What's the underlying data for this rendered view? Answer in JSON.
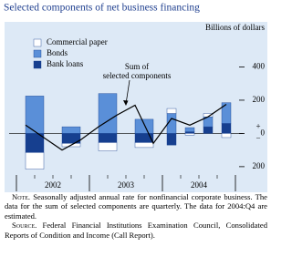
{
  "chart_data": {
    "type": "stacked_bar_line",
    "title": "Selected components of net business financing",
    "units": "Billions of dollars",
    "annotation": "Sum of selected components",
    "sign_labels": {
      "positive": "+",
      "negative": "−"
    },
    "year_labels": [
      "2002",
      "2003",
      "2004"
    ],
    "xlim": [
      2001.9,
      2005.1
    ],
    "xticks": [
      2002,
      2003,
      2004,
      2005
    ],
    "ylim": [
      -250,
      600
    ],
    "yticks": [
      400,
      200,
      0,
      {
        "value": -200,
        "label": "200"
      }
    ],
    "bar_x": [
      2002.25,
      2002.75,
      2003.25,
      2003.75,
      2004.125,
      2004.375,
      2004.625,
      2004.875
    ],
    "series": [
      {
        "name": "Commercial paper",
        "color": "#ffffff",
        "values": [
          -100,
          -20,
          -50,
          -30,
          30,
          -10,
          20,
          -25
        ]
      },
      {
        "name": "Bonds",
        "color": "#5a8fd8",
        "values": [
          225,
          40,
          240,
          85,
          120,
          25,
          60,
          125
        ]
      },
      {
        "name": "Bank loans",
        "color": "#163f8f",
        "values": [
          -115,
          -60,
          -55,
          -55,
          -70,
          10,
          40,
          60
        ]
      }
    ],
    "line": {
      "name": "Sum of selected components",
      "color": "#000000",
      "x": [
        2002.125,
        2002.375,
        2002.625,
        2002.875,
        2003.125,
        2003.375,
        2003.625,
        2003.875,
        2004.125,
        2004.375,
        2004.625,
        2004.875
      ],
      "values": [
        50,
        -25,
        -100,
        -40,
        40,
        110,
        170,
        -60,
        90,
        50,
        100,
        175
      ]
    },
    "note_label": "Note.",
    "note": "Seasonally adjusted annual rate for nonfinancial corporate business. The data for the sum of selected components are quarterly. The data for 2004:Q4 are estimated.",
    "source_label": "Source.",
    "source": "Federal Financial Institutions Examination Council, Consolidated Reports of Condition and Income (Call Report)."
  }
}
